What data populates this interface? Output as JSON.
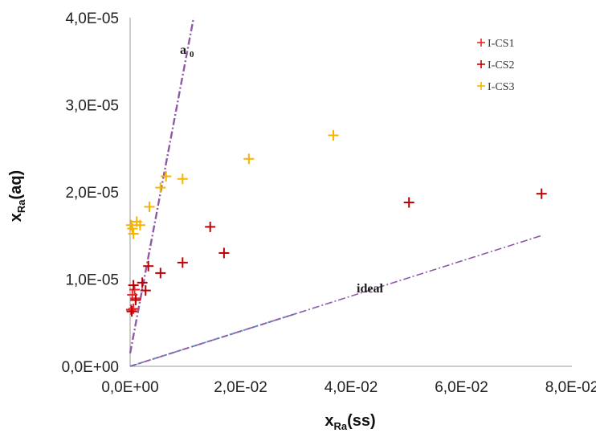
{
  "chart_data": {
    "type": "scatter",
    "title": "",
    "xlabel": {
      "main": "x",
      "sub": "Ra",
      "suffix": "(ss)"
    },
    "ylabel": {
      "main": "x",
      "sub": "Ra",
      "suffix": "(aq)"
    },
    "xlim": [
      0,
      0.08
    ],
    "ylim": [
      0,
      4e-05
    ],
    "x_ticks": [
      0,
      0.02,
      0.04,
      0.06,
      0.08
    ],
    "x_tick_labels": [
      "0,0E+00",
      "2,0E-02",
      "4,0E-02",
      "6,0E-02",
      "8,0E-02"
    ],
    "y_ticks": [
      0,
      1e-05,
      2e-05,
      3e-05,
      4e-05
    ],
    "y_tick_labels": [
      "0,0E+00",
      "1,0E-05",
      "2,0E-05",
      "3,0E-05",
      "4,0E-05"
    ],
    "grid": false,
    "legend_position": "top-right",
    "series": [
      {
        "name": "I-CS1",
        "color": "#e8262a",
        "marker": "plus",
        "x": [
          0.0002,
          0.0004,
          0.0006,
          0.0008,
          0.001
        ],
        "y": [
          6.5e-06,
          8.2e-06,
          6.6e-06,
          8.8e-06,
          7.8e-06
        ]
      },
      {
        "name": "I-CS2",
        "color": "#c00000",
        "marker": "plus",
        "x": [
          0.0003,
          0.0006,
          0.001,
          0.0022,
          0.0028,
          0.0033,
          0.0055,
          0.0095,
          0.0145,
          0.017,
          0.0505,
          0.0745
        ],
        "y": [
          6.3e-06,
          9.3e-06,
          7.6e-06,
          9.6e-06,
          8.7e-06,
          1.15e-05,
          1.07e-05,
          1.19e-05,
          1.6e-05,
          1.3e-05,
          1.88e-05,
          1.98e-05
        ]
      },
      {
        "name": "I-CS3",
        "color": "#f5b400",
        "marker": "plus",
        "x": [
          0.0002,
          0.0006,
          0.0004,
          0.0012,
          0.0018,
          0.0035,
          0.0055,
          0.0065,
          0.0095,
          0.0215,
          0.0368
        ],
        "y": [
          1.62e-05,
          1.52e-05,
          1.58e-05,
          1.66e-05,
          1.62e-05,
          1.83e-05,
          2.05e-05,
          2.18e-05,
          2.15e-05,
          2.38e-05,
          2.65e-05
        ]
      }
    ],
    "lines": [
      {
        "label": "a",
        "label_sub": "0",
        "color": "#8e5aa8",
        "style": "dash-dot",
        "x": [
          0,
          0.0115
        ],
        "y": [
          1.5e-06,
          4e-05
        ]
      },
      {
        "label": "ideal",
        "label_sub": "",
        "color": "#8e5aa8",
        "style": "dash-dot",
        "x": [
          0,
          0.0745
        ],
        "y": [
          0,
          1.5e-05
        ]
      }
    ],
    "colors": {
      "axis": "#9a9a9a",
      "ideal_underlay": "#6a8fc1"
    }
  }
}
